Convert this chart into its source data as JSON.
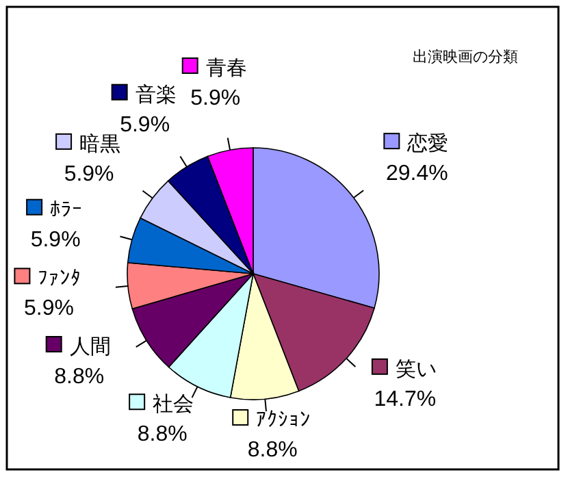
{
  "chart_data": {
    "type": "pie",
    "title": "出演映画の分類",
    "categories": [
      "恋愛",
      "笑い",
      "ｱｸｼｮﾝ",
      "社会",
      "人間",
      "ﾌｧﾝﾀ",
      "ﾎﾗｰ",
      "暗黒",
      "音楽",
      "青春"
    ],
    "values": [
      29.4,
      14.7,
      8.8,
      8.8,
      8.8,
      5.9,
      5.9,
      5.9,
      5.9,
      5.9
    ],
    "legend": "top left",
    "colors": [
      "#9999ff",
      "#993366",
      "#ffffcc",
      "#ccffff",
      "#660066",
      "#ff8080",
      "#0066cc",
      "#ccccff",
      "#000080",
      "#ff00ff"
    ],
    "value_labels": [
      "29.4%",
      "14.7%",
      "8.8%",
      "8.8%",
      "8.8%",
      "5.9%",
      "5.9%",
      "5.9%",
      "5.9%",
      "5.9%"
    ]
  }
}
